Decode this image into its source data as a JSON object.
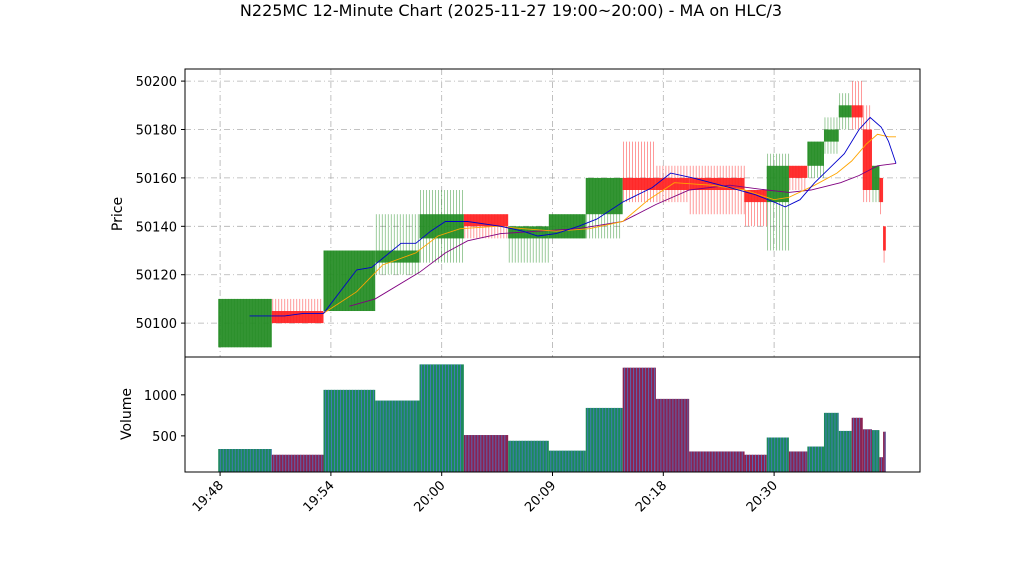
{
  "chart_data": {
    "type": "ohlc",
    "title": "N225MC 12-Minute Chart (2025-11-27 19:00~20:00) - MA on HLC/3",
    "price_panel": {
      "ylabel": "Price",
      "ylim": [
        50086,
        50205
      ],
      "yticks": [
        50100,
        50120,
        50140,
        50160,
        50180,
        50200
      ],
      "grid": true
    },
    "volume_panel": {
      "ylabel": "Volume",
      "ylim": [
        60,
        1460
      ],
      "yticks": [
        500,
        1000
      ],
      "ytick_labels": [
        "500",
        "1000"
      ],
      "grid": false
    },
    "x_ticks": [
      {
        "label": "19:48",
        "t": 0
      },
      {
        "label": "19:54",
        "t": 6
      },
      {
        "label": "20:00",
        "t": 12
      },
      {
        "label": "20:09",
        "t": 18
      },
      {
        "label": "20:18",
        "t": 24
      },
      {
        "label": "20:30",
        "t": 30
      }
    ],
    "xlim": [
      -1.9,
      37.9
    ],
    "colors": {
      "up": "#228b22",
      "down": "#ff2020",
      "volume_up": "#1b8a5a",
      "volume_down": "#8b2252",
      "volume_stripe": "#4a78c8",
      "ma_fast": "#0000cc",
      "ma_mid": "#ffa500",
      "ma_slow": "#800080",
      "grid": "#b0b0b0"
    },
    "bars": [
      {
        "t0": -0.1,
        "t1": 2.8,
        "open": 50090,
        "high": 50110,
        "low": 50090,
        "close": 50110,
        "volume": 340
      },
      {
        "t0": 2.8,
        "t1": 5.6,
        "open": 50105,
        "high": 50110,
        "low": 50100,
        "close": 50100,
        "volume": 270
      },
      {
        "t0": 5.6,
        "t1": 8.4,
        "open": 50105,
        "high": 50130,
        "low": 50105,
        "close": 50130,
        "volume": 1060
      },
      {
        "t0": 8.4,
        "t1": 10.8,
        "open": 50125,
        "high": 50145,
        "low": 50120,
        "close": 50130,
        "volume": 930
      },
      {
        "t0": 10.8,
        "t1": 13.2,
        "open": 50135,
        "high": 50155,
        "low": 50125,
        "close": 50145,
        "volume": 1370
      },
      {
        "t0": 13.2,
        "t1": 15.6,
        "open": 50145,
        "high": 50145,
        "low": 50135,
        "close": 50140,
        "volume": 510
      },
      {
        "t0": 15.6,
        "t1": 17.8,
        "open": 50135,
        "high": 50140,
        "low": 50125,
        "close": 50140,
        "volume": 440
      },
      {
        "t0": 17.8,
        "t1": 19.8,
        "open": 50135,
        "high": 50145,
        "low": 50135,
        "close": 50145,
        "volume": 320
      },
      {
        "t0": 19.8,
        "t1": 21.8,
        "open": 50145,
        "high": 50160,
        "low": 50135,
        "close": 50160,
        "volume": 840
      },
      {
        "t0": 21.8,
        "t1": 23.6,
        "open": 50160,
        "high": 50175,
        "low": 50150,
        "close": 50155,
        "volume": 1330
      },
      {
        "t0": 23.6,
        "t1": 25.4,
        "open": 50160,
        "high": 50165,
        "low": 50150,
        "close": 50155,
        "volume": 950
      },
      {
        "t0": 25.4,
        "t1": 28.4,
        "open": 50160,
        "high": 50165,
        "low": 50145,
        "close": 50155,
        "volume": 310
      },
      {
        "t0": 28.4,
        "t1": 29.6,
        "open": 50155,
        "high": 50155,
        "low": 50140,
        "close": 50150,
        "volume": 270
      },
      {
        "t0": 29.6,
        "t1": 30.8,
        "open": 50150,
        "high": 50170,
        "low": 50130,
        "close": 50165,
        "volume": 480
      },
      {
        "t0": 30.8,
        "t1": 31.8,
        "open": 50165,
        "high": 50165,
        "low": 50155,
        "close": 50160,
        "volume": 310
      },
      {
        "t0": 31.8,
        "t1": 32.7,
        "open": 50165,
        "high": 50175,
        "low": 50160,
        "close": 50175,
        "volume": 370
      },
      {
        "t0": 32.7,
        "t1": 33.5,
        "open": 50175,
        "high": 50185,
        "low": 50170,
        "close": 50180,
        "volume": 780
      },
      {
        "t0": 33.5,
        "t1": 34.2,
        "open": 50185,
        "high": 50195,
        "low": 50180,
        "close": 50190,
        "volume": 560
      },
      {
        "t0": 34.2,
        "t1": 34.8,
        "open": 50190,
        "high": 50200,
        "low": 50180,
        "close": 50185,
        "volume": 720
      },
      {
        "t0": 34.8,
        "t1": 35.3,
        "open": 50180,
        "high": 50190,
        "low": 50150,
        "close": 50155,
        "volume": 580
      },
      {
        "t0": 35.3,
        "t1": 35.7,
        "open": 50155,
        "high": 50165,
        "low": 50150,
        "close": 50165,
        "volume": 570
      },
      {
        "t0": 35.7,
        "t1": 35.9,
        "open": 50160,
        "high": 50160,
        "low": 50145,
        "close": 50150,
        "volume": 240
      },
      {
        "t0": 35.9,
        "t1": 36.05,
        "open": 50140,
        "high": 50140,
        "low": 50125,
        "close": 50130,
        "volume": 550
      }
    ],
    "ma_fast": [
      [
        1.6,
        50103
      ],
      [
        3.5,
        50103
      ],
      [
        4.5,
        50104
      ],
      [
        5.6,
        50104
      ],
      [
        7.4,
        50122
      ],
      [
        8.2,
        50123
      ],
      [
        9.8,
        50133
      ],
      [
        10.6,
        50133
      ],
      [
        11.4,
        50138
      ],
      [
        12.2,
        50142
      ],
      [
        13.4,
        50142
      ],
      [
        15.2,
        50140
      ],
      [
        16.4,
        50138
      ],
      [
        17.2,
        50136
      ],
      [
        18.2,
        50137
      ],
      [
        19.4,
        50140
      ],
      [
        20.4,
        50143
      ],
      [
        21.8,
        50150
      ],
      [
        23.4,
        50156
      ],
      [
        24.4,
        50162
      ],
      [
        25.6,
        50160
      ],
      [
        27.6,
        50156
      ],
      [
        29.0,
        50153
      ],
      [
        30.0,
        50150
      ],
      [
        30.6,
        50148
      ],
      [
        31.4,
        50151
      ],
      [
        32.2,
        50158
      ],
      [
        33.0,
        50164
      ],
      [
        33.8,
        50170
      ],
      [
        34.6,
        50180
      ],
      [
        35.2,
        50185
      ],
      [
        35.8,
        50181
      ],
      [
        36.2,
        50175
      ],
      [
        36.6,
        50166
      ]
    ],
    "ma_mid": [
      [
        5.6,
        50104
      ],
      [
        7.4,
        50113
      ],
      [
        8.8,
        50124
      ],
      [
        10.6,
        50129
      ],
      [
        11.8,
        50136
      ],
      [
        13.0,
        50139
      ],
      [
        15.0,
        50140
      ],
      [
        16.4,
        50139
      ],
      [
        18.2,
        50138
      ],
      [
        20.0,
        50139
      ],
      [
        21.8,
        50142
      ],
      [
        23.2,
        50151
      ],
      [
        24.6,
        50158
      ],
      [
        26.6,
        50157
      ],
      [
        28.4,
        50155
      ],
      [
        30.0,
        50151
      ],
      [
        30.8,
        50152
      ],
      [
        32.2,
        50157
      ],
      [
        33.4,
        50162
      ],
      [
        34.2,
        50167
      ],
      [
        35.0,
        50174
      ],
      [
        35.6,
        50178
      ],
      [
        36.2,
        50177
      ],
      [
        36.6,
        50177
      ]
    ],
    "ma_slow": [
      [
        7.0,
        50107
      ],
      [
        8.4,
        50110
      ],
      [
        10.8,
        50121
      ],
      [
        12.2,
        50129
      ],
      [
        13.4,
        50134
      ],
      [
        15.2,
        50137
      ],
      [
        17.2,
        50138
      ],
      [
        19.4,
        50139
      ],
      [
        21.8,
        50142
      ],
      [
        23.6,
        50149
      ],
      [
        25.4,
        50155
      ],
      [
        27.6,
        50157
      ],
      [
        29.6,
        50155
      ],
      [
        30.8,
        50154
      ],
      [
        32.0,
        50155
      ],
      [
        33.6,
        50158
      ],
      [
        34.6,
        50161
      ],
      [
        35.6,
        50165
      ],
      [
        36.6,
        50166
      ]
    ]
  }
}
